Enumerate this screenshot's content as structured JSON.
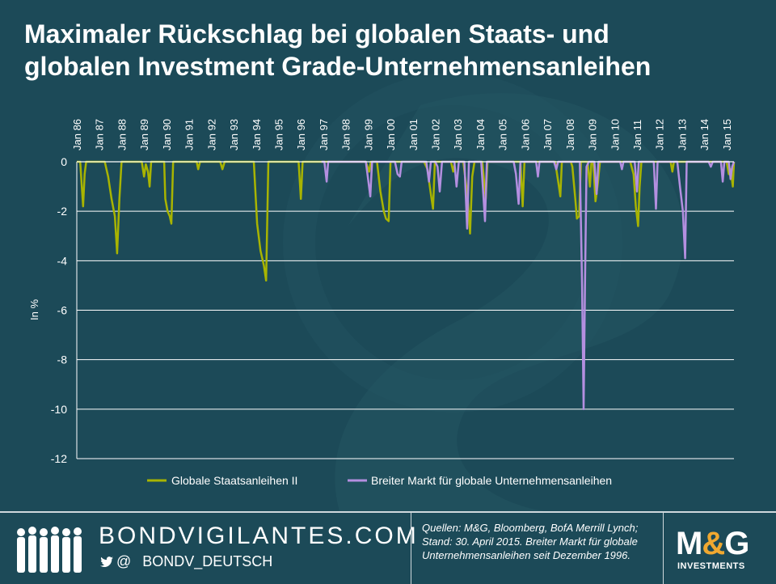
{
  "title": {
    "line1": "Maximaler Rückschlag bei globalen Staats- und",
    "line2": "globalen Investment Grade-Unternehmensanleihen"
  },
  "colors": {
    "background": "#1c4a58",
    "series_gov": "#a8b400",
    "series_corp": "#b48fe0",
    "logo_ampersand": "#f0a830"
  },
  "chart_data": {
    "type": "line",
    "title": "Maximaler Rückschlag bei globalen Staats- und globalen Investment Grade-Unternehmensanleihen",
    "xlabel": "",
    "ylabel": "In %",
    "ylim": [
      -12,
      0
    ],
    "yticks": [
      0,
      -2,
      -4,
      -6,
      -8,
      -10,
      -12
    ],
    "xlim": [
      1986.0,
      2015.33
    ],
    "x_ticks": [
      {
        "x": 1986,
        "label": "Jan 86"
      },
      {
        "x": 1987,
        "label": "Jan 87"
      },
      {
        "x": 1988,
        "label": "Jan 88"
      },
      {
        "x": 1989,
        "label": "Jan 89"
      },
      {
        "x": 1990,
        "label": "Jan 90"
      },
      {
        "x": 1991,
        "label": "Jan 91"
      },
      {
        "x": 1992,
        "label": "Jan 92"
      },
      {
        "x": 1993,
        "label": "Jan 93"
      },
      {
        "x": 1994,
        "label": "Jan 94"
      },
      {
        "x": 1995,
        "label": "Jan 95"
      },
      {
        "x": 1996,
        "label": "Jan 96"
      },
      {
        "x": 1997,
        "label": "Jan 97"
      },
      {
        "x": 1998,
        "label": "Jan 98"
      },
      {
        "x": 1999,
        "label": "Jan 99"
      },
      {
        "x": 2000,
        "label": "Jan 00"
      },
      {
        "x": 2001,
        "label": "Jan 01"
      },
      {
        "x": 2002,
        "label": "Jan 02"
      },
      {
        "x": 2003,
        "label": "Jan 03"
      },
      {
        "x": 2004,
        "label": "Jan 04"
      },
      {
        "x": 2005,
        "label": "Jan 05"
      },
      {
        "x": 2006,
        "label": "Jan 06"
      },
      {
        "x": 2007,
        "label": "Jan 07"
      },
      {
        "x": 2008,
        "label": "Jan 08"
      },
      {
        "x": 2009,
        "label": "Jan 09"
      },
      {
        "x": 2010,
        "label": "Jan 10"
      },
      {
        "x": 2011,
        "label": "Jan 11"
      },
      {
        "x": 2012,
        "label": "Jan 12"
      },
      {
        "x": 2013,
        "label": "Jan 13"
      },
      {
        "x": 2014,
        "label": "Jan 14"
      },
      {
        "x": 2015,
        "label": "Jan 15"
      }
    ],
    "grid": true,
    "legend_position": "bottom-center",
    "series": [
      {
        "name": "Globale Staatsanleihen II",
        "color": "#a8b400",
        "points": [
          [
            1986.0,
            0
          ],
          [
            1986.15,
            0
          ],
          [
            1986.28,
            -1.8
          ],
          [
            1986.35,
            -0.5
          ],
          [
            1986.42,
            0
          ],
          [
            1987.25,
            0
          ],
          [
            1987.4,
            -0.6
          ],
          [
            1987.55,
            -1.5
          ],
          [
            1987.7,
            -2.2
          ],
          [
            1987.8,
            -3.7
          ],
          [
            1987.9,
            -1.5
          ],
          [
            1988.0,
            0
          ],
          [
            1988.9,
            0
          ],
          [
            1989.0,
            -0.6
          ],
          [
            1989.08,
            -0.1
          ],
          [
            1989.18,
            -0.4
          ],
          [
            1989.25,
            -1.0
          ],
          [
            1989.32,
            0
          ],
          [
            1989.9,
            0
          ],
          [
            1989.95,
            -1.5
          ],
          [
            1990.05,
            -2.0
          ],
          [
            1990.15,
            -2.2
          ],
          [
            1990.22,
            -2.5
          ],
          [
            1990.3,
            0
          ],
          [
            1991.35,
            0
          ],
          [
            1991.42,
            -0.3
          ],
          [
            1991.5,
            0
          ],
          [
            1992.4,
            0
          ],
          [
            1992.5,
            -0.3
          ],
          [
            1992.6,
            0
          ],
          [
            1993.9,
            0
          ],
          [
            1994.05,
            -2.5
          ],
          [
            1994.2,
            -3.6
          ],
          [
            1994.35,
            -4.2
          ],
          [
            1994.45,
            -4.8
          ],
          [
            1994.55,
            0
          ],
          [
            1995.9,
            0
          ],
          [
            1996.0,
            -1.5
          ],
          [
            1996.08,
            0
          ],
          [
            1998.9,
            0
          ],
          [
            1999.05,
            -0.4
          ],
          [
            1999.12,
            0
          ],
          [
            1999.4,
            0
          ],
          [
            1999.55,
            -1.2
          ],
          [
            1999.7,
            -2.0
          ],
          [
            1999.8,
            -2.3
          ],
          [
            1999.92,
            -2.4
          ],
          [
            2000.0,
            0
          ],
          [
            2001.5,
            0
          ],
          [
            2001.65,
            -0.3
          ],
          [
            2001.8,
            -1.3
          ],
          [
            2001.9,
            -1.9
          ],
          [
            2001.98,
            0
          ],
          [
            2002.7,
            0
          ],
          [
            2002.8,
            -0.4
          ],
          [
            2002.88,
            0
          ],
          [
            2003.25,
            0
          ],
          [
            2003.45,
            -1.5
          ],
          [
            2003.55,
            -2.9
          ],
          [
            2003.65,
            -0.6
          ],
          [
            2003.75,
            0
          ],
          [
            2004.1,
            0
          ],
          [
            2004.25,
            -1.5
          ],
          [
            2004.33,
            0
          ],
          [
            2005.8,
            0
          ],
          [
            2005.9,
            -1.8
          ],
          [
            2005.98,
            0
          ],
          [
            2007.35,
            0
          ],
          [
            2007.5,
            -0.9
          ],
          [
            2007.58,
            -1.4
          ],
          [
            2007.65,
            0
          ],
          [
            2008.05,
            0
          ],
          [
            2008.12,
            -0.2
          ],
          [
            2008.25,
            -1.5
          ],
          [
            2008.32,
            -2.3
          ],
          [
            2008.42,
            -2.2
          ],
          [
            2008.5,
            0
          ],
          [
            2008.8,
            0
          ],
          [
            2008.9,
            -1.0
          ],
          [
            2008.97,
            0
          ],
          [
            2009.05,
            0
          ],
          [
            2009.15,
            -1.6
          ],
          [
            2009.25,
            -0.9
          ],
          [
            2009.35,
            0
          ],
          [
            2010.7,
            0
          ],
          [
            2010.85,
            -0.5
          ],
          [
            2010.95,
            -1.8
          ],
          [
            2011.05,
            -2.6
          ],
          [
            2011.12,
            -1.0
          ],
          [
            2011.2,
            0
          ],
          [
            2012.5,
            0
          ],
          [
            2012.58,
            -0.4
          ],
          [
            2012.65,
            0
          ],
          [
            2015.0,
            0
          ],
          [
            2015.1,
            -0.5
          ],
          [
            2015.18,
            -0.3
          ],
          [
            2015.28,
            -1.0
          ],
          [
            2015.33,
            0
          ]
        ]
      },
      {
        "name": "Breiter Markt für globale Unternehmensanleihen",
        "color": "#b48fe0",
        "points": [
          [
            1996.92,
            0
          ],
          [
            1997.05,
            0
          ],
          [
            1997.15,
            -0.8
          ],
          [
            1997.22,
            0
          ],
          [
            1998.9,
            0
          ],
          [
            1999.1,
            -1.4
          ],
          [
            1999.18,
            0
          ],
          [
            2000.2,
            0
          ],
          [
            2000.32,
            -0.5
          ],
          [
            2000.42,
            -0.6
          ],
          [
            2000.5,
            0
          ],
          [
            2001.6,
            0
          ],
          [
            2001.72,
            -0.8
          ],
          [
            2001.8,
            0
          ],
          [
            2002.0,
            0
          ],
          [
            2002.1,
            -0.2
          ],
          [
            2002.2,
            -1.2
          ],
          [
            2002.3,
            0
          ],
          [
            2002.85,
            0
          ],
          [
            2002.95,
            -1.0
          ],
          [
            2003.05,
            0
          ],
          [
            2003.3,
            0
          ],
          [
            2003.42,
            -2.7
          ],
          [
            2003.5,
            0
          ],
          [
            2004.05,
            0
          ],
          [
            2004.12,
            -1.0
          ],
          [
            2004.22,
            -2.4
          ],
          [
            2004.3,
            0
          ],
          [
            2005.5,
            0
          ],
          [
            2005.6,
            -0.5
          ],
          [
            2005.72,
            -1.7
          ],
          [
            2005.8,
            0
          ],
          [
            2006.5,
            0
          ],
          [
            2006.58,
            -0.6
          ],
          [
            2006.65,
            0
          ],
          [
            2007.3,
            0
          ],
          [
            2007.4,
            -0.3
          ],
          [
            2007.48,
            0
          ],
          [
            2008.45,
            0
          ],
          [
            2008.55,
            -5.0
          ],
          [
            2008.62,
            -10.0
          ],
          [
            2008.68,
            -5.0
          ],
          [
            2008.75,
            -0.2
          ],
          [
            2008.85,
            0
          ],
          [
            2009.1,
            0
          ],
          [
            2009.2,
            -1.3
          ],
          [
            2009.28,
            0
          ],
          [
            2010.25,
            0
          ],
          [
            2010.33,
            -0.3
          ],
          [
            2010.4,
            0
          ],
          [
            2010.9,
            0
          ],
          [
            2011.0,
            -1.2
          ],
          [
            2011.08,
            0
          ],
          [
            2011.75,
            0
          ],
          [
            2011.85,
            -1.9
          ],
          [
            2011.92,
            0
          ],
          [
            2012.8,
            0
          ],
          [
            2012.92,
            -1.0
          ],
          [
            2013.05,
            -2.0
          ],
          [
            2013.15,
            -3.9
          ],
          [
            2013.22,
            0
          ],
          [
            2014.2,
            0
          ],
          [
            2014.3,
            -0.2
          ],
          [
            2014.38,
            0
          ],
          [
            2014.75,
            0
          ],
          [
            2014.83,
            -0.8
          ],
          [
            2014.9,
            0
          ],
          [
            2015.1,
            0
          ],
          [
            2015.18,
            -0.7
          ],
          [
            2015.25,
            -0.2
          ],
          [
            2015.33,
            0
          ]
        ]
      }
    ]
  },
  "footer": {
    "brand": "BONDVIGILANTES.COM",
    "social_at": "@",
    "handle": "BONDV_DEUTSCH",
    "sources": "Quellen: M&G, Bloomberg, BofA Merrill Lynch; Stand: 30. April 2015. Breiter Markt für globale Unternehmensanleihen seit Dezember 1996.",
    "logo_text": "M&G",
    "logo_sub": "INVESTMENTS"
  }
}
